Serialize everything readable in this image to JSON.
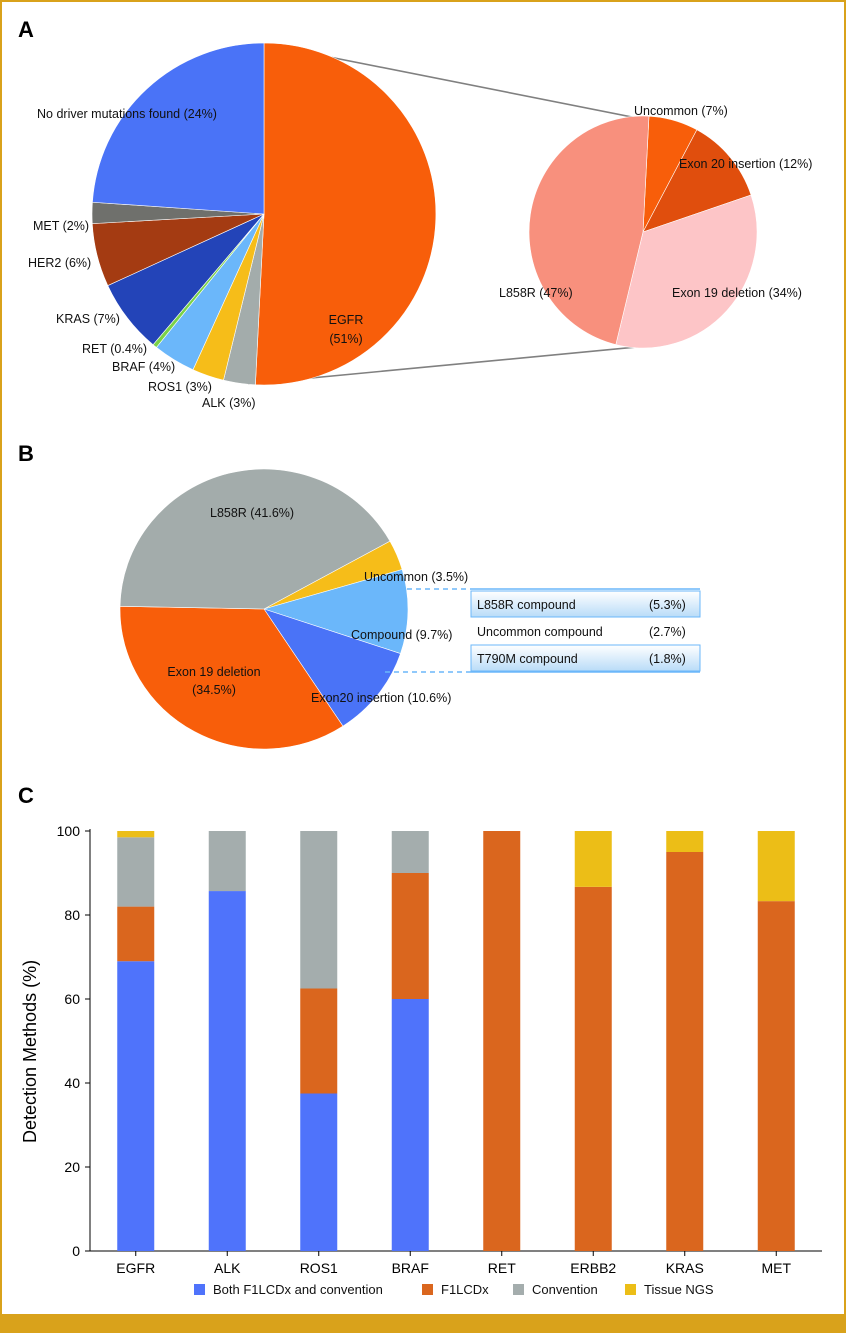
{
  "panels": {
    "a": "A",
    "b": "B",
    "c": "C"
  },
  "colors": {
    "blue": "#4a73f7",
    "orange": "#f85e0a",
    "gray": "#a3acab",
    "yellow": "#f6bd19",
    "lightblue": "#6bb7fa",
    "darkgray": "#6f706c",
    "brown": "#a43b12",
    "navy": "#2344b8",
    "green": "#7ad248",
    "salmon": "#f8907d",
    "pink": "#fdc5c7",
    "midorange": "#e04e0d",
    "bar_blue": "#4f73fb",
    "bar_orange": "#da661e",
    "bar_gray": "#a4adad",
    "bar_yellow": "#ecbe17"
  },
  "chart_data": [
    {
      "id": "A-main",
      "type": "pie",
      "title": "",
      "start_angle_deg": 0,
      "direction": "clockwise",
      "slices": [
        {
          "name": "EGFR",
          "label1": "EGFR",
          "label2": "(51%)",
          "value": 51,
          "color": "orange"
        },
        {
          "name": "ALK",
          "label1": "ALK (3%)",
          "value": 3,
          "color": "gray"
        },
        {
          "name": "ROS1",
          "label1": "ROS1 (3%)",
          "value": 3,
          "color": "yellow"
        },
        {
          "name": "BRAF",
          "label1": "BRAF (4%)",
          "value": 4,
          "color": "lightblue"
        },
        {
          "name": "RET",
          "label1": "RET (0.4%)",
          "value": 0.4,
          "color": "green"
        },
        {
          "name": "KRAS",
          "label1": "KRAS (7%)",
          "value": 7,
          "color": "navy"
        },
        {
          "name": "HER2",
          "label1": "HER2 (6%)",
          "value": 6,
          "color": "brown"
        },
        {
          "name": "MET",
          "label1": "MET (2%)",
          "value": 2,
          "color": "darkgray"
        },
        {
          "name": "No driver",
          "label1": "No driver mutations found (24%)",
          "value": 24,
          "color": "blue"
        }
      ]
    },
    {
      "id": "A-sub",
      "type": "pie",
      "title": "",
      "start_angle_deg": 3,
      "direction": "clockwise",
      "slices": [
        {
          "name": "Uncommon",
          "label1": "Uncommon (7%)",
          "value": 7,
          "color": "orange"
        },
        {
          "name": "Exon 20 insertion",
          "label1": "Exon 20 insertion (12%)",
          "value": 12,
          "color": "midorange"
        },
        {
          "name": "Exon 19 deletion",
          "label1": "Exon 19 deletion (34%)",
          "value": 34,
          "color": "pink"
        },
        {
          "name": "L858R",
          "label1": "L858R (47%)",
          "value": 47,
          "color": "salmon"
        }
      ]
    },
    {
      "id": "B",
      "type": "pie",
      "title": "",
      "start_angle_deg": 61,
      "direction": "clockwise",
      "slices": [
        {
          "name": "Uncommon",
          "label1": "Uncommon (3.5%)",
          "value": 3.5,
          "color": "yellow"
        },
        {
          "name": "Compound",
          "label1": "Compound (9.7%)",
          "value": 9.7,
          "color": "lightblue"
        },
        {
          "name": "Exon20 insertion",
          "label1": "Exon20 insertion (10.6%)",
          "value": 10.6,
          "color": "blue"
        },
        {
          "name": "Exon 19 deletion",
          "label1": "Exon 19 deletion",
          "label2": "(34.5%)",
          "value": 34.5,
          "color": "orange"
        },
        {
          "name": "L858R",
          "label1": "L858R (41.6%)",
          "value": 41.6,
          "color": "gray"
        }
      ],
      "breakdown": [
        {
          "name": "L858R compound",
          "value": "(5.3%)",
          "highlight": true
        },
        {
          "name": "Uncommon compound",
          "value": "(2.7%)",
          "highlight": false
        },
        {
          "name": "T790M compound",
          "value": "(1.8%)",
          "highlight": true
        }
      ]
    },
    {
      "id": "C",
      "type": "bar",
      "stacked": true,
      "title": "",
      "xlabel": "",
      "ylabel": "Detection Methods (%)",
      "ylim": [
        0,
        100
      ],
      "yticks": [
        "0",
        "20",
        "40",
        "60",
        "80",
        "100"
      ],
      "categories": [
        "EGFR",
        "ALK",
        "ROS1",
        "BRAF",
        "RET",
        "ERBB2",
        "KRAS",
        "MET"
      ],
      "series": [
        {
          "name": "Both F1LCDx and convention",
          "color": "bar_blue",
          "values": [
            69,
            85.7,
            37.5,
            60,
            0,
            0,
            0,
            0
          ]
        },
        {
          "name": "F1LCDx",
          "color": "bar_orange",
          "values": [
            13,
            0,
            25,
            30,
            100,
            86.7,
            95,
            83.3
          ]
        },
        {
          "name": "Convention",
          "color": "bar_gray",
          "values": [
            16.5,
            14.3,
            37.5,
            10,
            0,
            0,
            0,
            0
          ]
        },
        {
          "name": "Tissue NGS",
          "color": "bar_yellow",
          "values": [
            1.5,
            0,
            0,
            0,
            0,
            13.3,
            5,
            16.7
          ]
        }
      ],
      "legend_position": "bottom"
    }
  ]
}
